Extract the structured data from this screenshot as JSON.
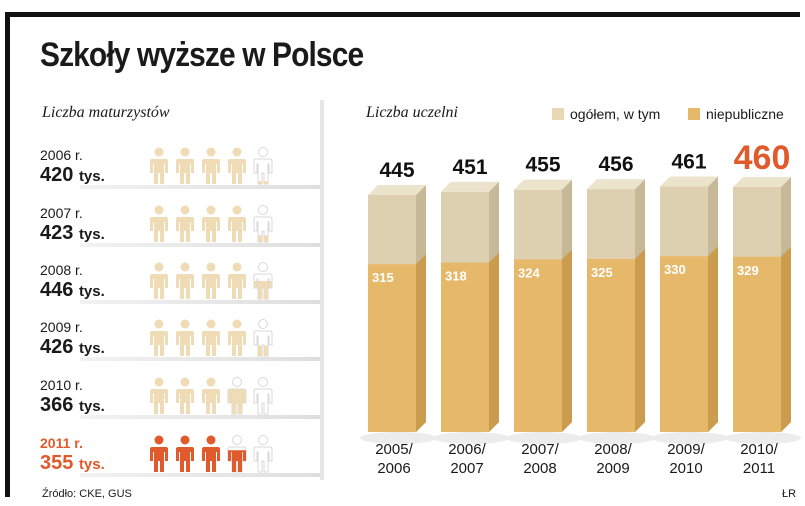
{
  "title": "Szkoły wyższe w Polsce",
  "left_panel": {
    "heading": "Liczba maturzystów",
    "unit_label": "tys.",
    "rows": [
      {
        "year": "2006 r.",
        "value": "420"
      },
      {
        "year": "2007 r.",
        "value": "423"
      },
      {
        "year": "2008 r.",
        "value": "446"
      },
      {
        "year": "2009 r.",
        "value": "426"
      },
      {
        "year": "2010 r.",
        "value": "366"
      },
      {
        "year": "2011 r.",
        "value": "355"
      }
    ]
  },
  "right_panel": {
    "heading": "Liczba uczelni",
    "legend": [
      {
        "label": "ogółem, w tym",
        "color": "#e8d9b4"
      },
      {
        "label": "niepubliczne",
        "color": "#e6b86a"
      }
    ]
  },
  "source": "Źródło: CKE, GUS",
  "credit": "ŁR",
  "colors": {
    "highlight": "#e05a2b",
    "total_front": "#ddd0b0",
    "total_side": "#c7b898",
    "total_top": "#ebe3cc",
    "private_front": "#e6b86a",
    "private_side": "#cc9c4e",
    "person": "#efdcb6",
    "person_highlight": "#e05a2b"
  },
  "chart_data": [
    {
      "type": "bar",
      "title": "Liczba uczelni",
      "categories": [
        "2005/\n2006",
        "2006/\n2007",
        "2007/\n2008",
        "2008/\n2009",
        "2009/\n2010",
        "2010/\n2011"
      ],
      "category_lines": [
        [
          "2005/",
          "2006"
        ],
        [
          "2006/",
          "2007"
        ],
        [
          "2007/",
          "2008"
        ],
        [
          "2008/",
          "2009"
        ],
        [
          "2009/",
          "2010"
        ],
        [
          "2010/",
          "2011"
        ]
      ],
      "series": [
        {
          "name": "ogółem, w tym",
          "values": [
            445,
            451,
            455,
            456,
            461,
            460
          ]
        },
        {
          "name": "niepubliczne",
          "values": [
            315,
            318,
            324,
            325,
            330,
            329
          ]
        }
      ],
      "highlight_index": 5,
      "ylim": [
        0,
        500
      ]
    },
    {
      "type": "bar",
      "title": "Liczba maturzystów",
      "categories": [
        "2006 r.",
        "2007 r.",
        "2008 r.",
        "2009 r.",
        "2010 r.",
        "2011 r."
      ],
      "values": [
        420,
        423,
        446,
        426,
        366,
        355
      ],
      "unit": "tys.",
      "icons_per_row": 5,
      "filled_icons": [
        4.1,
        4.2,
        4.5,
        4.3,
        3.7,
        3.6
      ],
      "highlight_index": 5
    }
  ]
}
